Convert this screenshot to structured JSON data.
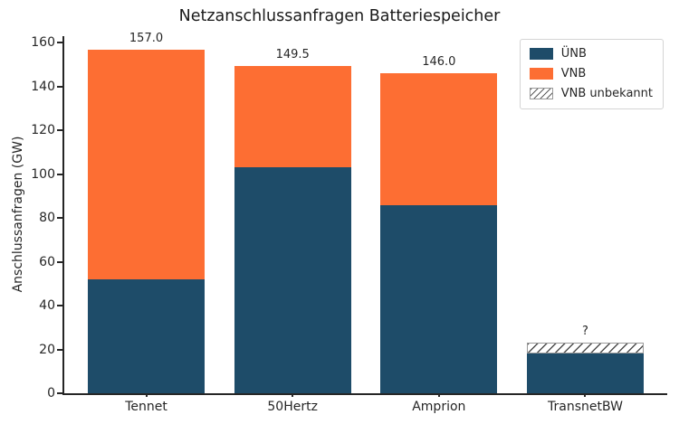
{
  "chart_data": {
    "type": "bar",
    "stacked": true,
    "title": "Netzanschlussanfragen Batteriespeicher",
    "ylabel": "Anschlussanfragen (GW)",
    "xlabel": "",
    "categories": [
      "Tennet",
      "50Hertz",
      "Amprion",
      "TransnetBW"
    ],
    "series": [
      {
        "name": "ÜNB",
        "color": "#1e4c69",
        "hatch": false,
        "values": [
          52,
          103,
          86,
          18
        ]
      },
      {
        "name": "VNB",
        "color": "#fd6e33",
        "hatch": false,
        "values": [
          105,
          46.5,
          60,
          0
        ]
      },
      {
        "name": "VNB unbekannt",
        "color": "#ffffff",
        "hatch": true,
        "values": [
          0,
          0,
          0,
          5
        ]
      }
    ],
    "totals_labels": [
      "157.0",
      "149.5",
      "146.0",
      "?"
    ],
    "yticks": [
      0,
      20,
      40,
      60,
      80,
      100,
      120,
      140,
      160
    ],
    "ylim": [
      0,
      163
    ],
    "xlim": [
      -0.56,
      3.56
    ],
    "bar_width": 0.8,
    "grid": false,
    "legend_position": "upper right"
  },
  "legend": {
    "items": [
      {
        "label": "ÜNB",
        "color": "#1e4c69",
        "hatch": false
      },
      {
        "label": "VNB",
        "color": "#fd6e33",
        "hatch": false
      },
      {
        "label": "VNB unbekannt",
        "color": "#ffffff",
        "hatch": true
      }
    ]
  },
  "colors": {
    "unb": "#1e4c69",
    "vnb": "#fd6e33",
    "hatch_edge": "#9a9a9a",
    "hatch_line": "#4d4d4d",
    "axis_text": "#262626"
  }
}
